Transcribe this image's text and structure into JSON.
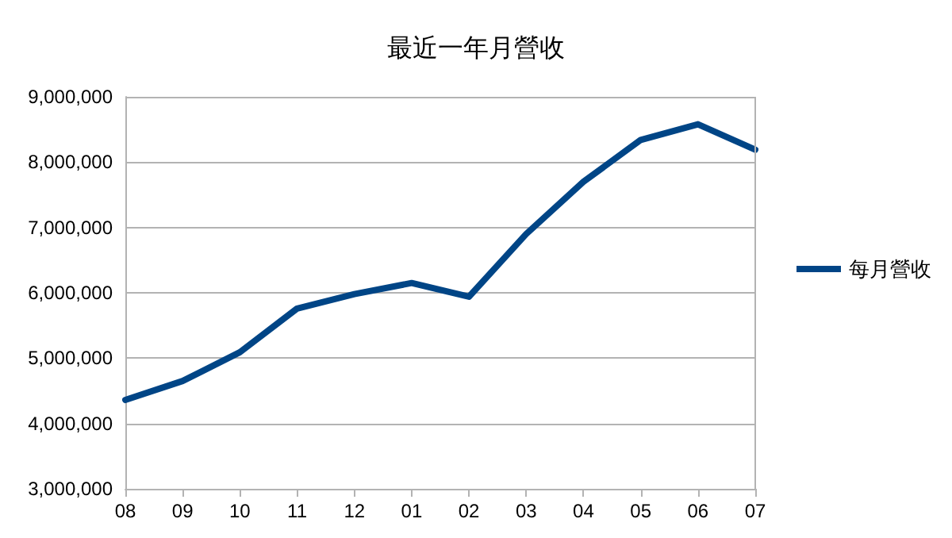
{
  "chart_data": {
    "type": "line",
    "title": "最近一年月營收",
    "categories": [
      "08",
      "09",
      "10",
      "11",
      "12",
      "01",
      "02",
      "03",
      "04",
      "05",
      "06",
      "07"
    ],
    "series": [
      {
        "name": "每月營收",
        "color": "#004586",
        "values": [
          4360000,
          4650000,
          5090000,
          5760000,
          5980000,
          6150000,
          5940000,
          6900000,
          7700000,
          8340000,
          8580000,
          8190000
        ]
      }
    ],
    "ylim": [
      3000000,
      9000000
    ],
    "yticks": [
      {
        "value": 3000000,
        "label": "3,000,000"
      },
      {
        "value": 4000000,
        "label": "4,000,000"
      },
      {
        "value": 5000000,
        "label": "5,000,000"
      },
      {
        "value": 6000000,
        "label": "6,000,000"
      },
      {
        "value": 7000000,
        "label": "7,000,000"
      },
      {
        "value": 8000000,
        "label": "8,000,000"
      },
      {
        "value": 9000000,
        "label": "9,000,000"
      }
    ],
    "grid": "y",
    "legend": "right",
    "marker": "none",
    "line_style": "solid"
  }
}
